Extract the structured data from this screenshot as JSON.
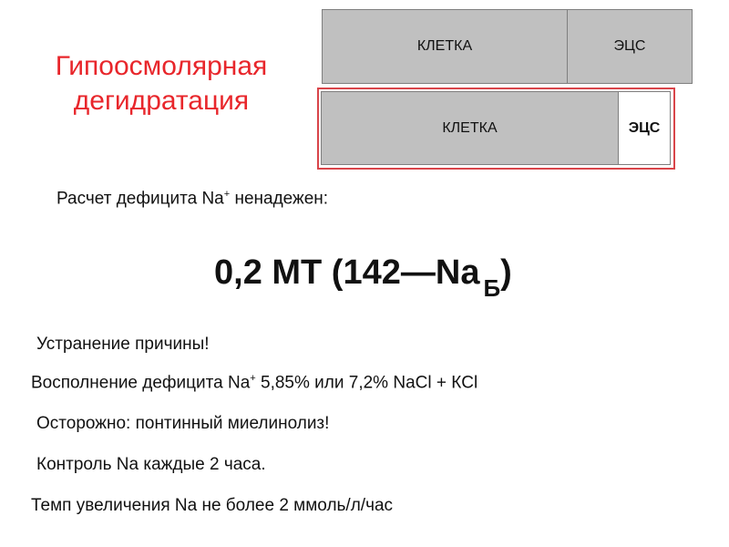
{
  "title": [
    "Гипоосмолярная",
    "дегидратация"
  ],
  "diagram": {
    "normal": {
      "cell": "КЛЕТКА",
      "ecs": "ЭЦС"
    },
    "dehydrated": {
      "cell": "КЛЕТКА",
      "ecs": "ЭЦС"
    },
    "highlight_color": "#d9454a"
  },
  "lines": {
    "deficit_a": "Расчет дефицита Na",
    "deficit_sup": "+",
    "deficit_b": " ненадежен:",
    "cause": "Устранение причины!",
    "repl_a": "Восполнение дефицита Na",
    "repl_sup": "+",
    "repl_b": " 5,85% или 7,2% NaCl + КCl",
    "caution": "Осторожно: понтинный миелинолиз!",
    "control": "Контроль Na каждые 2 часа.",
    "rate": "Темп увеличения Na не более 2 ммоль/л/час"
  },
  "formula": {
    "main": "0,2 МТ (142",
    "dash": "—",
    "na": "Na",
    "sub": "Б",
    "close": ")"
  }
}
